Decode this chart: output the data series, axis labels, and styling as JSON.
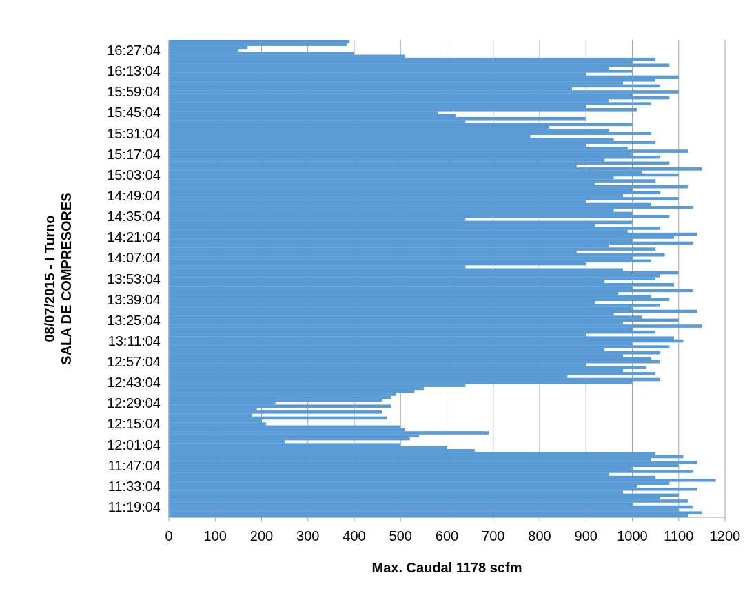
{
  "chart_data": {
    "type": "bar",
    "orientation": "horizontal",
    "xlabel": "Max. Caudal 1178 scfm",
    "ylabel": "08/07/2015 - I Turno\nSALA DE COMPRESORES",
    "categories": [
      null,
      null,
      null,
      "16:27:04",
      null,
      null,
      null,
      null,
      null,
      null,
      "16:13:04",
      null,
      null,
      null,
      null,
      null,
      null,
      "15:59:04",
      null,
      null,
      null,
      null,
      null,
      null,
      "15:45:04",
      null,
      null,
      null,
      null,
      null,
      null,
      "15:31:04",
      null,
      null,
      null,
      null,
      null,
      null,
      "15:17:04",
      null,
      null,
      null,
      null,
      null,
      null,
      "15:03:04",
      null,
      null,
      null,
      null,
      null,
      null,
      "14:49:04",
      null,
      null,
      null,
      null,
      null,
      null,
      "14:35:04",
      null,
      null,
      null,
      null,
      null,
      null,
      "14:21:04",
      null,
      null,
      null,
      null,
      null,
      null,
      "14:07:04",
      null,
      null,
      null,
      null,
      null,
      null,
      "13:53:04",
      null,
      null,
      null,
      null,
      null,
      null,
      "13:39:04",
      null,
      null,
      null,
      null,
      null,
      null,
      "13:25:04",
      null,
      null,
      null,
      null,
      null,
      null,
      "13:11:04",
      null,
      null,
      null,
      null,
      null,
      null,
      "12:57:04",
      null,
      null,
      null,
      null,
      null,
      null,
      "12:43:04",
      null,
      null,
      null,
      null,
      null,
      null,
      "12:29:04",
      null,
      null,
      null,
      null,
      null,
      null,
      "12:15:04",
      null,
      null,
      null,
      null,
      null,
      null,
      "12:01:04",
      null,
      null,
      null,
      null,
      null,
      null,
      "11:47:04",
      null,
      null,
      null,
      null,
      null,
      null,
      "11:33:04",
      null,
      null,
      null,
      null,
      null,
      null,
      "11:19:04",
      null,
      null,
      null
    ],
    "values": [
      390,
      385,
      170,
      150,
      400,
      510,
      1050,
      1000,
      1080,
      950,
      1000,
      900,
      1100,
      1050,
      980,
      1060,
      870,
      1100,
      1000,
      1080,
      950,
      1040,
      900,
      1010,
      580,
      620,
      900,
      640,
      1000,
      820,
      950,
      1040,
      780,
      960,
      1050,
      900,
      990,
      1120,
      1000,
      1060,
      940,
      1080,
      880,
      1150,
      1020,
      1100,
      960,
      1050,
      920,
      1120,
      1000,
      1060,
      980,
      1100,
      900,
      1040,
      1130,
      960,
      1000,
      1080,
      640,
      1000,
      920,
      1060,
      990,
      1140,
      1090,
      1000,
      1130,
      950,
      1050,
      880,
      1070,
      1000,
      1040,
      900,
      640,
      980,
      1100,
      1060,
      1050,
      940,
      1090,
      1000,
      1130,
      970,
      1040,
      1080,
      920,
      1060,
      1000,
      1140,
      960,
      1020,
      1100,
      980,
      1150,
      1000,
      1050,
      900,
      1090,
      1110,
      1000,
      1080,
      940,
      1060,
      980,
      1040,
      1060,
      900,
      1030,
      980,
      1050,
      860,
      1060,
      1000,
      640,
      550,
      530,
      490,
      480,
      460,
      230,
      480,
      190,
      460,
      180,
      470,
      200,
      210,
      500,
      510,
      690,
      540,
      520,
      250,
      500,
      600,
      660,
      1050,
      1110,
      1040,
      1140,
      1100,
      1000,
      1130,
      950,
      1050,
      1180,
      1080,
      1010,
      1140,
      980,
      1100,
      1060,
      1120,
      1000,
      1130,
      1100,
      1150,
      1120
    ],
    "color": "#5b9bd5",
    "xlim": [
      0,
      1200
    ],
    "xticks": [
      0,
      100,
      200,
      300,
      400,
      500,
      600,
      700,
      800,
      900,
      1000,
      1100,
      1200
    ],
    "grid": "x"
  }
}
